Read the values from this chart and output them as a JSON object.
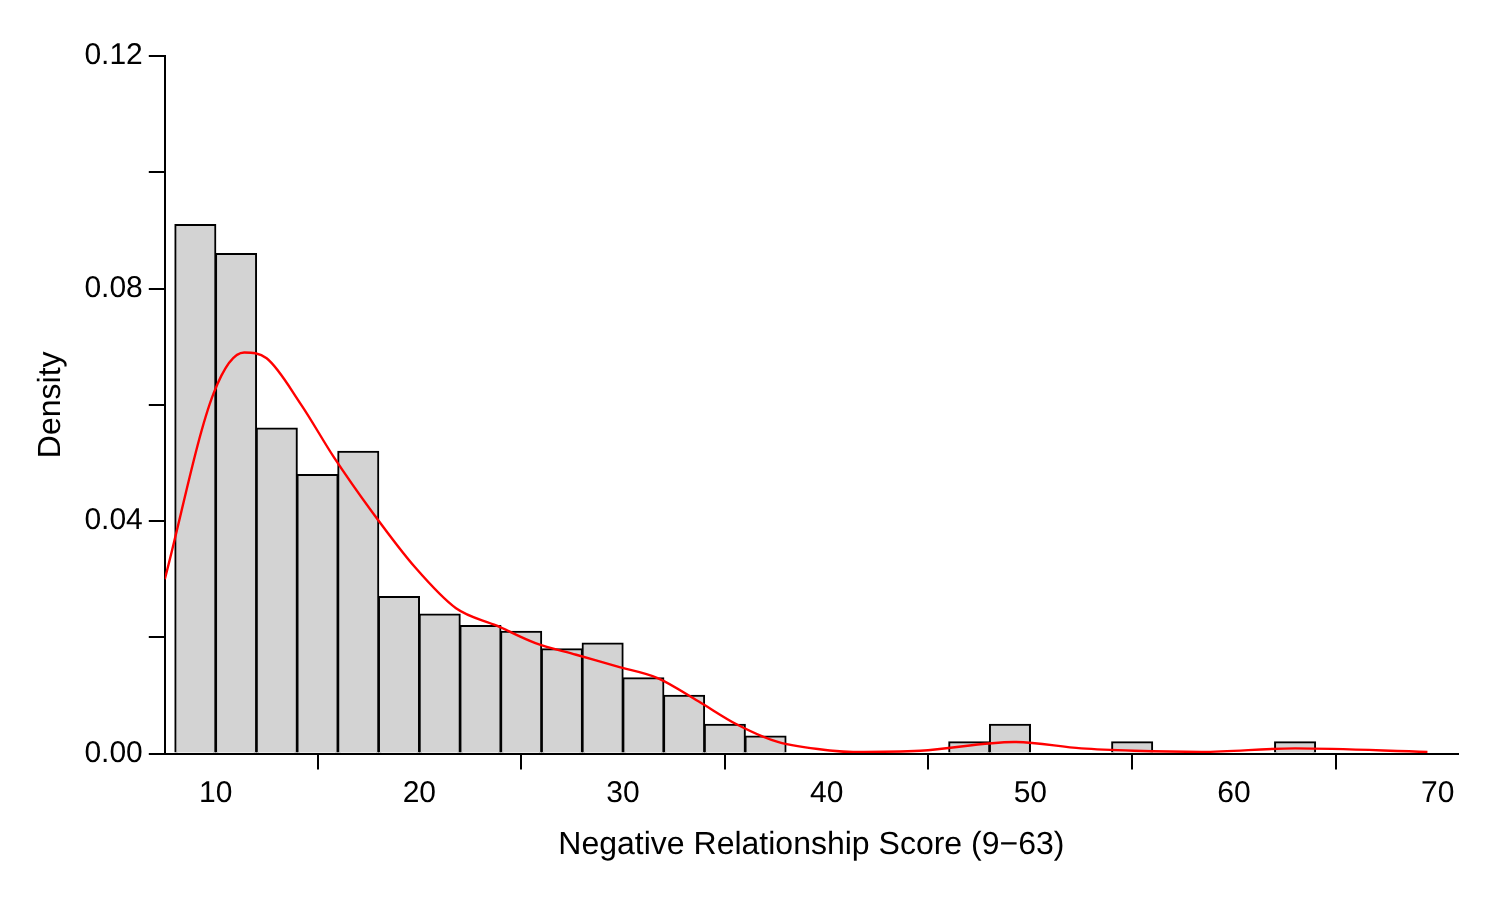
{
  "chart_data": {
    "type": "histogram",
    "xlabel": "Negative Relationship Score (9−63)",
    "ylabel": "Density",
    "bins": [
      8,
      10,
      12,
      14,
      16,
      18,
      20,
      22,
      24,
      26,
      28,
      30,
      32,
      34,
      36,
      38,
      40,
      42,
      44,
      46,
      48,
      50,
      52,
      54,
      56,
      58,
      60,
      62,
      64
    ],
    "values": [
      0.091,
      0.086,
      0.056,
      0.048,
      0.052,
      0.027,
      0.024,
      0.022,
      0.021,
      0.018,
      0.019,
      0.013,
      0.01,
      0.005,
      0.003,
      0,
      0,
      0,
      0,
      0.002,
      0.005,
      0,
      0,
      0.002,
      0,
      0,
      0,
      0.002
    ],
    "color": "#d3d3d3",
    "series": [
      {
        "type": "line",
        "color": "#ff0000",
        "x": [
          7.5,
          9.9,
          11.4,
          12.5,
          14.2,
          15.8,
          17.8,
          19.8,
          21.8,
          23.8,
          25.7,
          27.7,
          29.7,
          31.7,
          33.7,
          35.6,
          37.6,
          40.3,
          41.3,
          44.6,
          49.2,
          52.5,
          55.1,
          58.4,
          63,
          69.5
        ],
        "values": [
          0.03,
          0.062,
          0.069,
          0.068,
          0.06,
          0.051,
          0.041,
          0.032,
          0.025,
          0.022,
          0.019,
          0.017,
          0.015,
          0.013,
          0.009,
          0.005,
          0.002,
          0.0005,
          0.0003,
          0.0005,
          0.002,
          0.0009,
          0.0005,
          0.0003,
          0.0009,
          0.0003
        ]
      }
    ],
    "xlim": [
      7.5,
      71
    ],
    "xticks": [
      10,
      20,
      30,
      40,
      50,
      60,
      70
    ],
    "ylim": [
      0,
      0.12
    ],
    "yticks": [
      {
        "value": 0,
        "label": "0.00"
      },
      {
        "value": 0.02,
        "label": null
      },
      {
        "value": 0.04,
        "label": "0.04"
      },
      {
        "value": 0.06,
        "label": null
      },
      {
        "value": 0.08,
        "label": "0.08"
      },
      {
        "value": 0.1,
        "label": null
      },
      {
        "value": 0.12,
        "label": "0.12"
      }
    ],
    "grid": false,
    "legend": false
  }
}
